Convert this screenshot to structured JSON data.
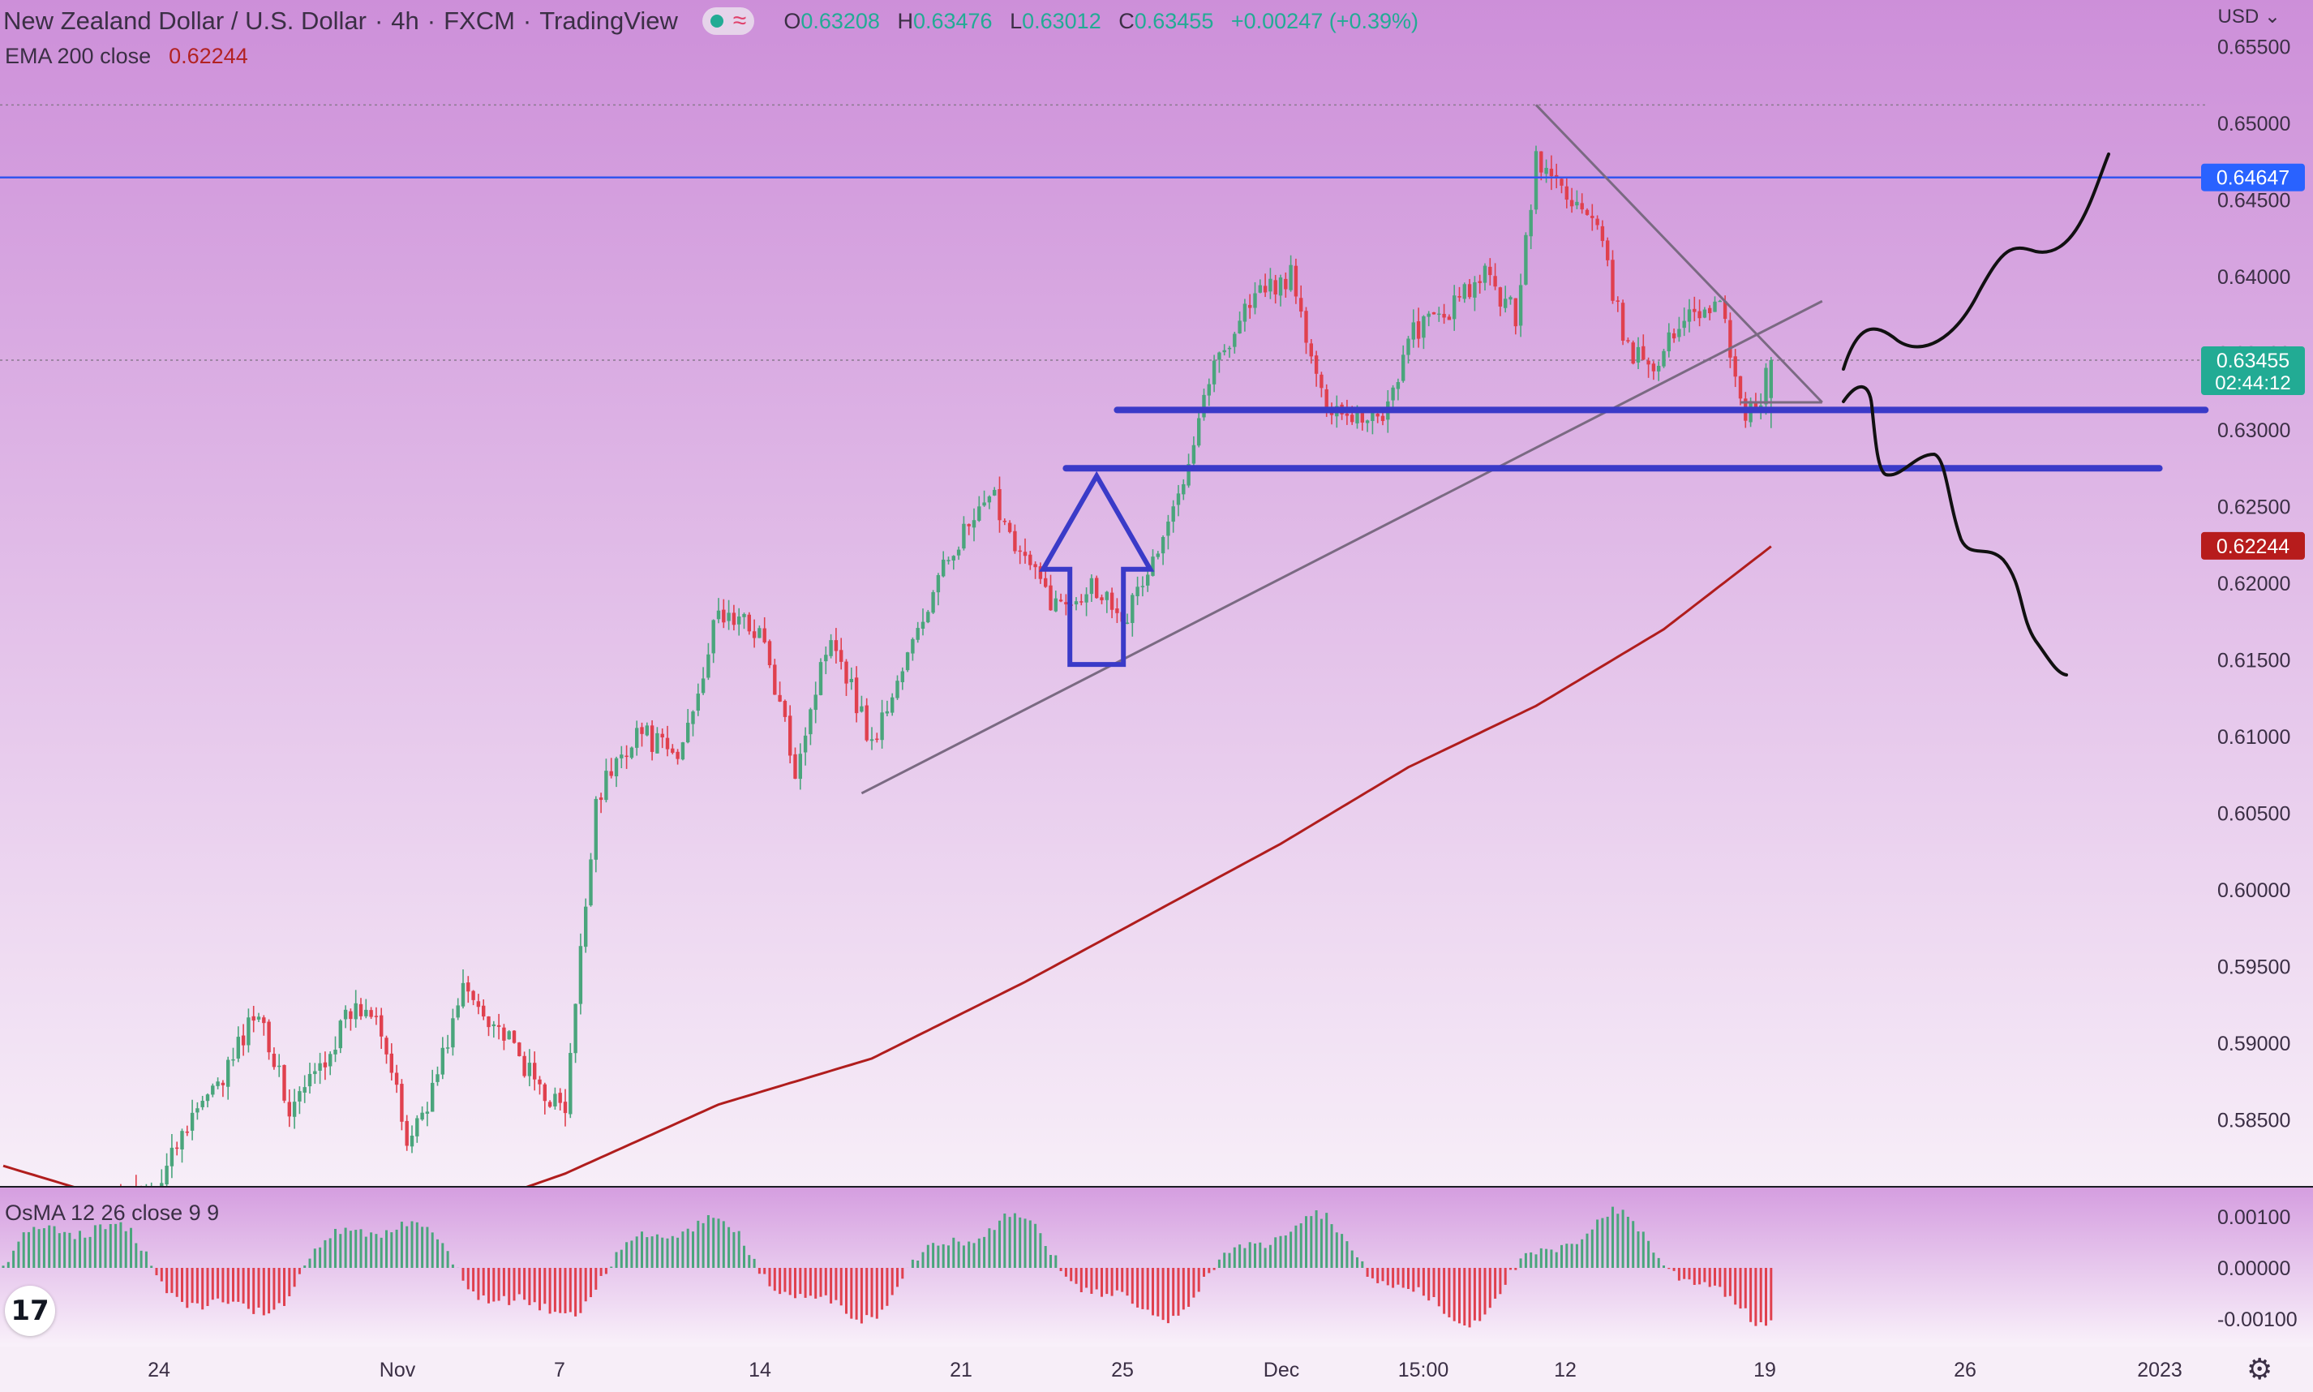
{
  "header": {
    "symbol": "New Zealand Dollar / U.S. Dollar",
    "interval": "4h",
    "exchange": "FXCM",
    "source": "TradingView",
    "ohlc": {
      "o_label": "O",
      "o": "0.63208",
      "h_label": "H",
      "h": "0.63476",
      "l_label": "L",
      "l": "0.63012",
      "c_label": "C",
      "c": "0.63455",
      "change": "+0.00247 (+0.39%)"
    },
    "currency": "USD"
  },
  "ema": {
    "label": "EMA 200 close",
    "value": "0.62244"
  },
  "osma": {
    "label": "OsMA 12 26 close 9 9"
  },
  "price_tags": {
    "hline": "0.64647",
    "last": "0.63455",
    "countdown": "02:44:12",
    "ema": "0.62244"
  },
  "colors": {
    "bull": "#4aa57c",
    "bear": "#e0404e",
    "ema": "#b01d1d",
    "hline": "#3355ee",
    "support": "#3a3ac8",
    "arrow": "#3a3ac8",
    "trend": "#7a6a82",
    "background_top": "#cd8fd9",
    "background_bottom": "#f7eef8"
  },
  "icons": {
    "logo": "tradingview-logo-icon",
    "settings": "gear-icon",
    "status": "market-open-dot-icon",
    "replay": "wave-icon"
  },
  "chart_data": [
    {
      "type": "candlestick",
      "title": "New Zealand Dollar / U.S. Dollar, 4h",
      "ylim": [
        0.581,
        0.657
      ],
      "y_ticks": [
        "0.65500",
        "0.65000",
        "0.64500",
        "0.64000",
        "0.63500",
        "0.63000",
        "0.62500",
        "0.62000",
        "0.61500",
        "0.61000",
        "0.60500",
        "0.60000",
        "0.59500",
        "0.59000",
        "0.58500"
      ],
      "x_ticks": [
        "24",
        "Nov",
        "7",
        "14",
        "21",
        "25",
        "Dec",
        "15:00",
        "12",
        "19",
        "26",
        "2023"
      ],
      "anchors": [
        {
          "i": 0,
          "v": 0.5765
        },
        {
          "i": 30,
          "v": 0.5805
        },
        {
          "i": 36,
          "v": 0.585
        },
        {
          "i": 42,
          "v": 0.587
        },
        {
          "i": 50,
          "v": 0.5925
        },
        {
          "i": 56,
          "v": 0.5855
        },
        {
          "i": 62,
          "v": 0.5885
        },
        {
          "i": 68,
          "v": 0.592
        },
        {
          "i": 73,
          "v": 0.5925
        },
        {
          "i": 79,
          "v": 0.5835
        },
        {
          "i": 84,
          "v": 0.587
        },
        {
          "i": 90,
          "v": 0.5935
        },
        {
          "i": 96,
          "v": 0.5915
        },
        {
          "i": 104,
          "v": 0.5875
        },
        {
          "i": 110,
          "v": 0.5855
        },
        {
          "i": 116,
          "v": 0.606
        },
        {
          "i": 124,
          "v": 0.6105
        },
        {
          "i": 132,
          "v": 0.6085
        },
        {
          "i": 140,
          "v": 0.618
        },
        {
          "i": 148,
          "v": 0.617
        },
        {
          "i": 155,
          "v": 0.608
        },
        {
          "i": 162,
          "v": 0.617
        },
        {
          "i": 170,
          "v": 0.6095
        },
        {
          "i": 178,
          "v": 0.616
        },
        {
          "i": 186,
          "v": 0.6225
        },
        {
          "i": 194,
          "v": 0.6255
        },
        {
          "i": 200,
          "v": 0.6215
        },
        {
          "i": 206,
          "v": 0.6185
        },
        {
          "i": 213,
          "v": 0.62
        },
        {
          "i": 220,
          "v": 0.618
        },
        {
          "i": 228,
          "v": 0.6235
        },
        {
          "i": 236,
          "v": 0.6335
        },
        {
          "i": 244,
          "v": 0.6385
        },
        {
          "i": 252,
          "v": 0.64
        },
        {
          "i": 258,
          "v": 0.632
        },
        {
          "i": 264,
          "v": 0.631
        },
        {
          "i": 270,
          "v": 0.631
        },
        {
          "i": 276,
          "v": 0.6365
        },
        {
          "i": 282,
          "v": 0.6375
        },
        {
          "i": 290,
          "v": 0.64
        },
        {
          "i": 296,
          "v": 0.6375
        },
        {
          "i": 300,
          "v": 0.6475
        },
        {
          "i": 306,
          "v": 0.6455
        },
        {
          "i": 312,
          "v": 0.643
        },
        {
          "i": 318,
          "v": 0.635
        },
        {
          "i": 324,
          "v": 0.6345
        },
        {
          "i": 330,
          "v": 0.638
        },
        {
          "i": 336,
          "v": 0.638
        },
        {
          "i": 341,
          "v": 0.631
        },
        {
          "i": 344,
          "v": 0.632
        },
        {
          "i": 346,
          "v": 0.6346
        }
      ],
      "ema200": [
        {
          "i": 0,
          "v": 0.582
        },
        {
          "i": 40,
          "v": 0.578
        },
        {
          "i": 80,
          "v": 0.578
        },
        {
          "i": 110,
          "v": 0.5815
        },
        {
          "i": 140,
          "v": 0.586
        },
        {
          "i": 170,
          "v": 0.589
        },
        {
          "i": 200,
          "v": 0.594
        },
        {
          "i": 225,
          "v": 0.5985
        },
        {
          "i": 250,
          "v": 0.603
        },
        {
          "i": 275,
          "v": 0.608
        },
        {
          "i": 300,
          "v": 0.612
        },
        {
          "i": 325,
          "v": 0.617
        },
        {
          "i": 346,
          "v": 0.6224
        }
      ],
      "horizontal_level": 0.64647,
      "last_price": 0.63455,
      "support_levels": [
        0.6313,
        0.6275
      ],
      "trendlines": [
        {
          "from": {
            "i": 168,
            "v": 0.6063
          },
          "to": {
            "i": 356,
            "v": 0.6384
          }
        },
        {
          "from": {
            "i": 300,
            "v": 0.6512
          },
          "to": {
            "i": 356,
            "v": 0.6318
          }
        },
        {
          "from": {
            "i": 340,
            "v": 0.6318
          },
          "to": {
            "i": 356,
            "v": 0.6318
          }
        }
      ]
    },
    {
      "type": "bar",
      "title": "OsMA 12 26 close 9 9",
      "ylim": [
        -0.0014,
        0.0013
      ],
      "y_ticks": [
        "0.00100",
        "0.00000",
        "-0.00100"
      ]
    }
  ]
}
